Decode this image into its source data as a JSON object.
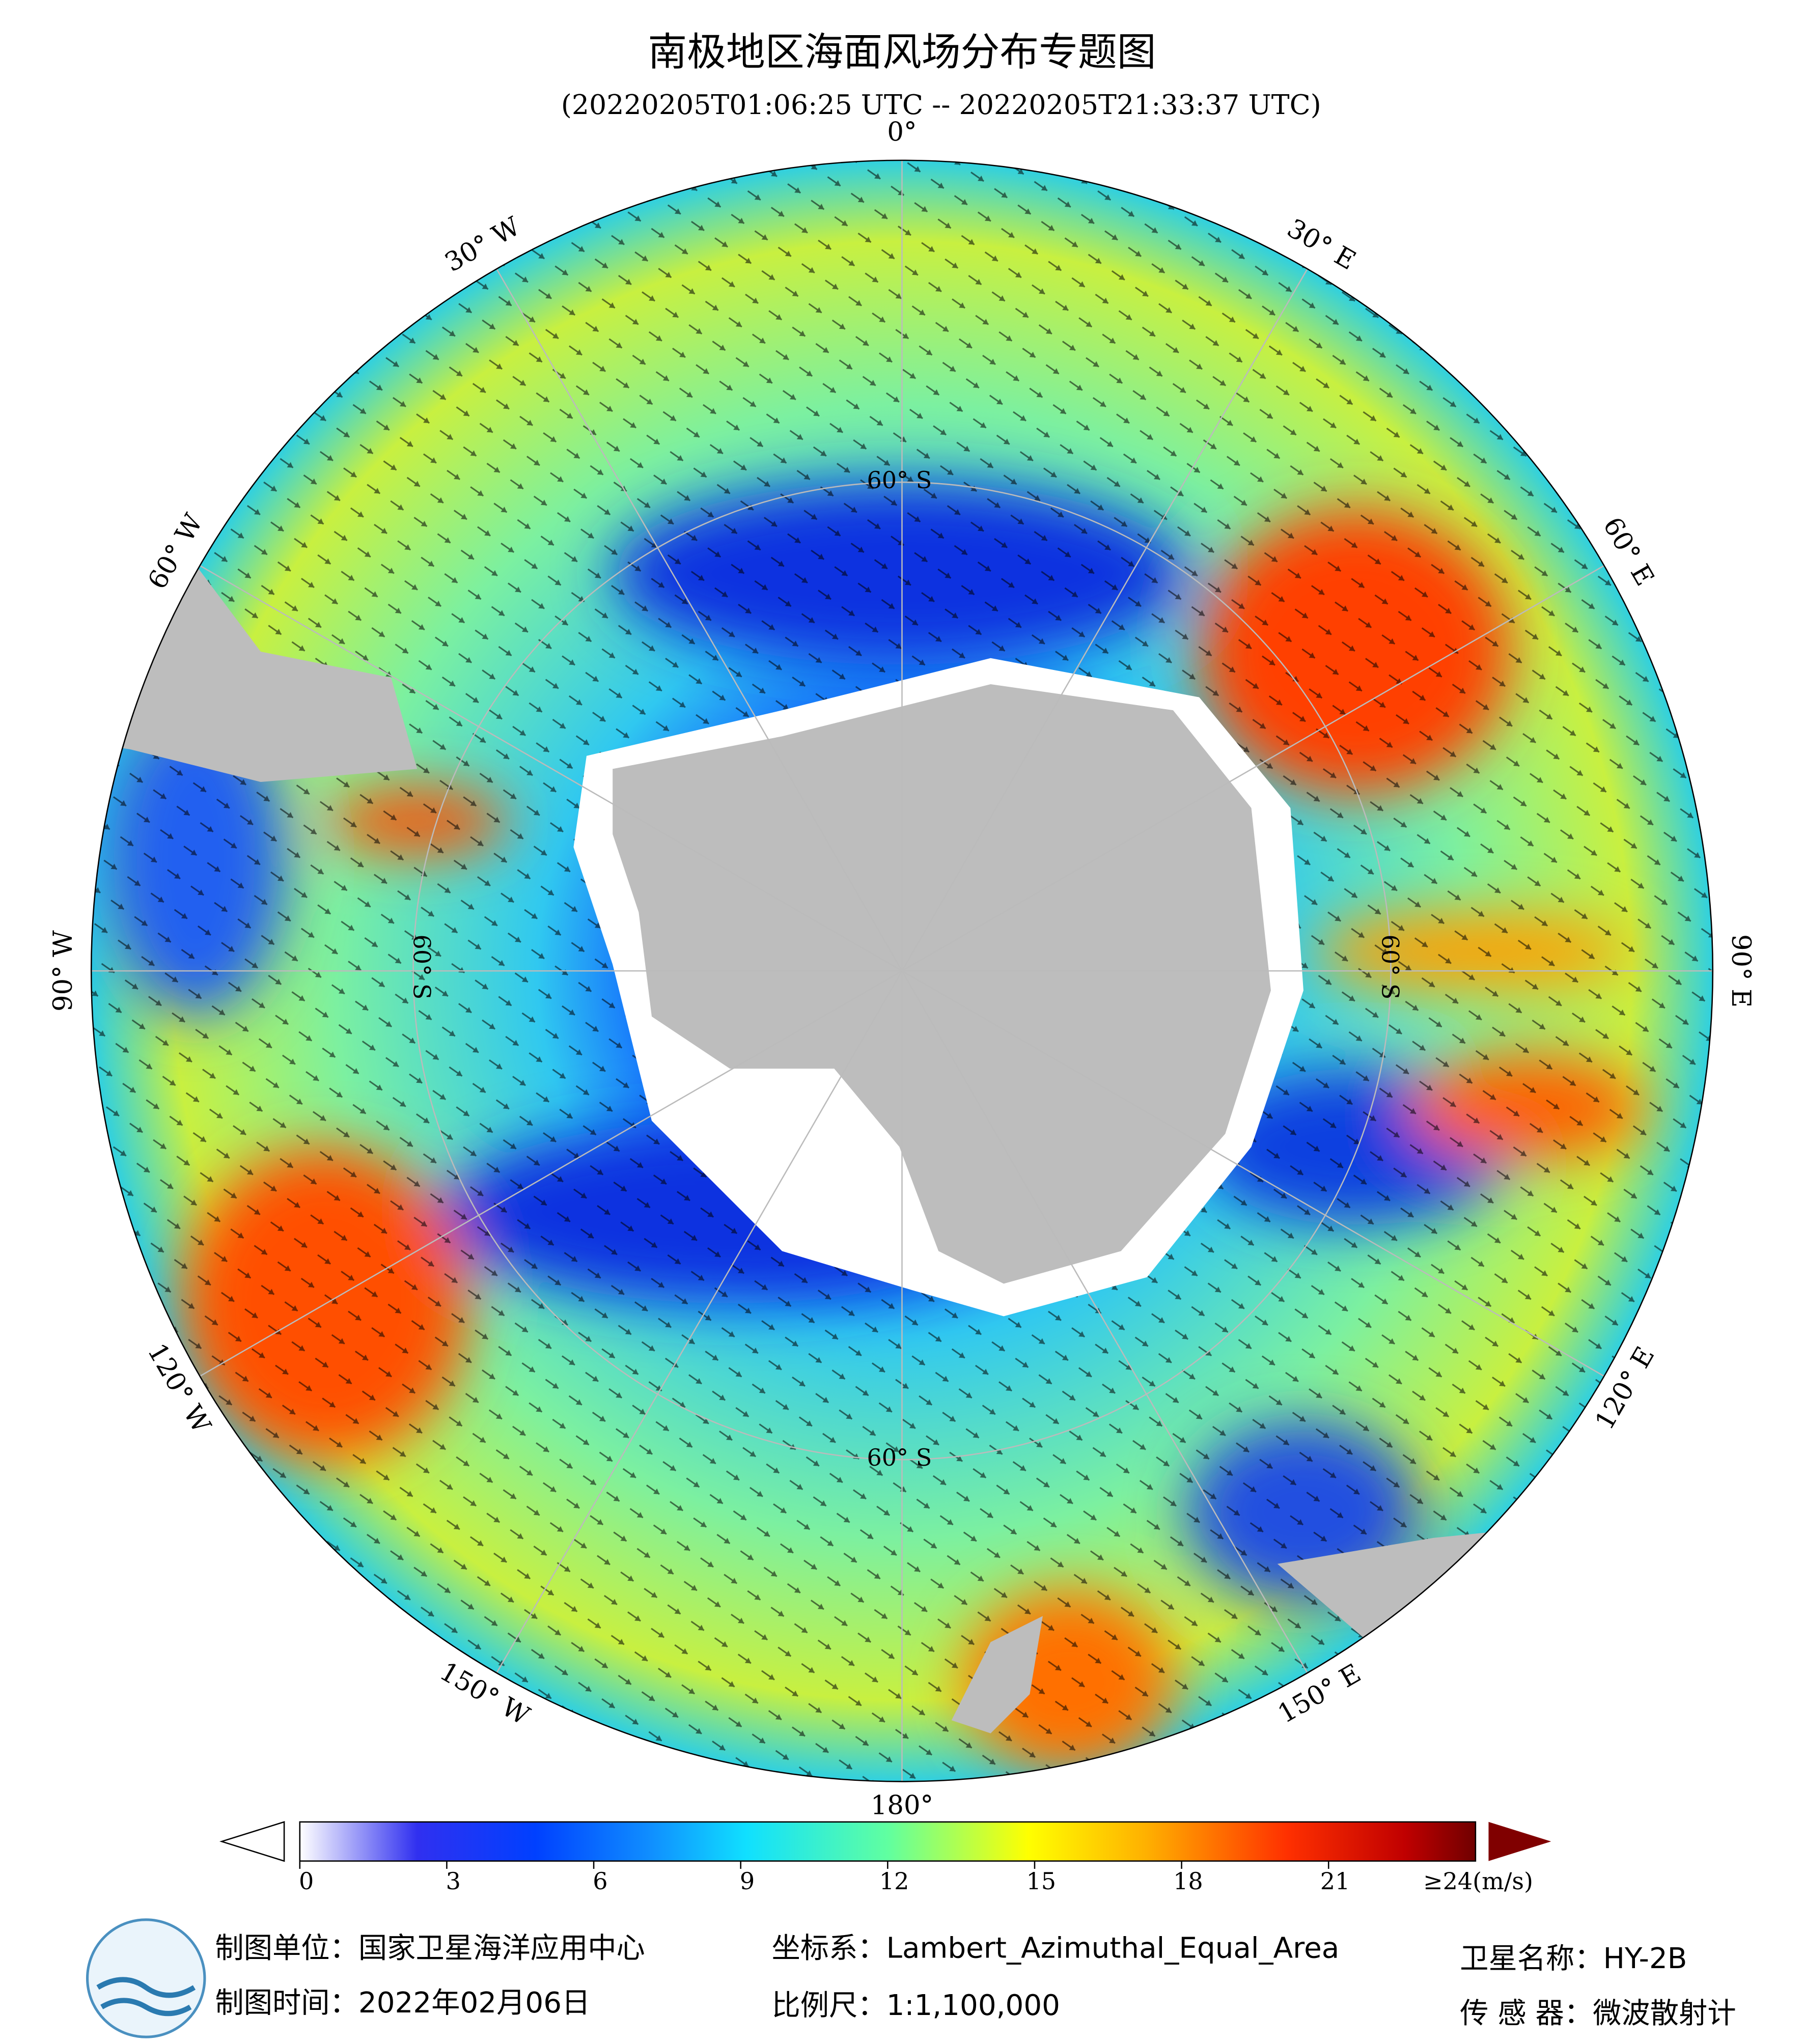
{
  "header": {
    "title": "南极地区海面风场分布专题图",
    "subtitle": "(20220205T01:06:25 UTC -- 20220205T21:33:37 UTC)"
  },
  "map": {
    "longitude_labels": [
      "0°",
      "30° E",
      "60° E",
      "90° E",
      "120° E",
      "150° E",
      "180°",
      "150° W",
      "120° W",
      "90° W",
      "60° W",
      "30° W"
    ],
    "latitude_labels": [
      "60° S",
      "60° S",
      "60° S",
      "60° S"
    ]
  },
  "colorbar": {
    "lim": [
      0,
      24
    ],
    "ticks": [
      0,
      3,
      6,
      9,
      12,
      15,
      18,
      21
    ],
    "max_label": "≥24(m/s)"
  },
  "footer": {
    "unit": "制图单位：国家卫星海洋应用中心",
    "date": "制图时间：2022年02月06日",
    "crs": "坐标系：Lambert_Azimuthal_Equal_Area",
    "scale": "比例尺：1:1,100,000",
    "satellite": "卫星名称：HY-2B",
    "sensor": "传 感 器：微波散射计"
  }
}
